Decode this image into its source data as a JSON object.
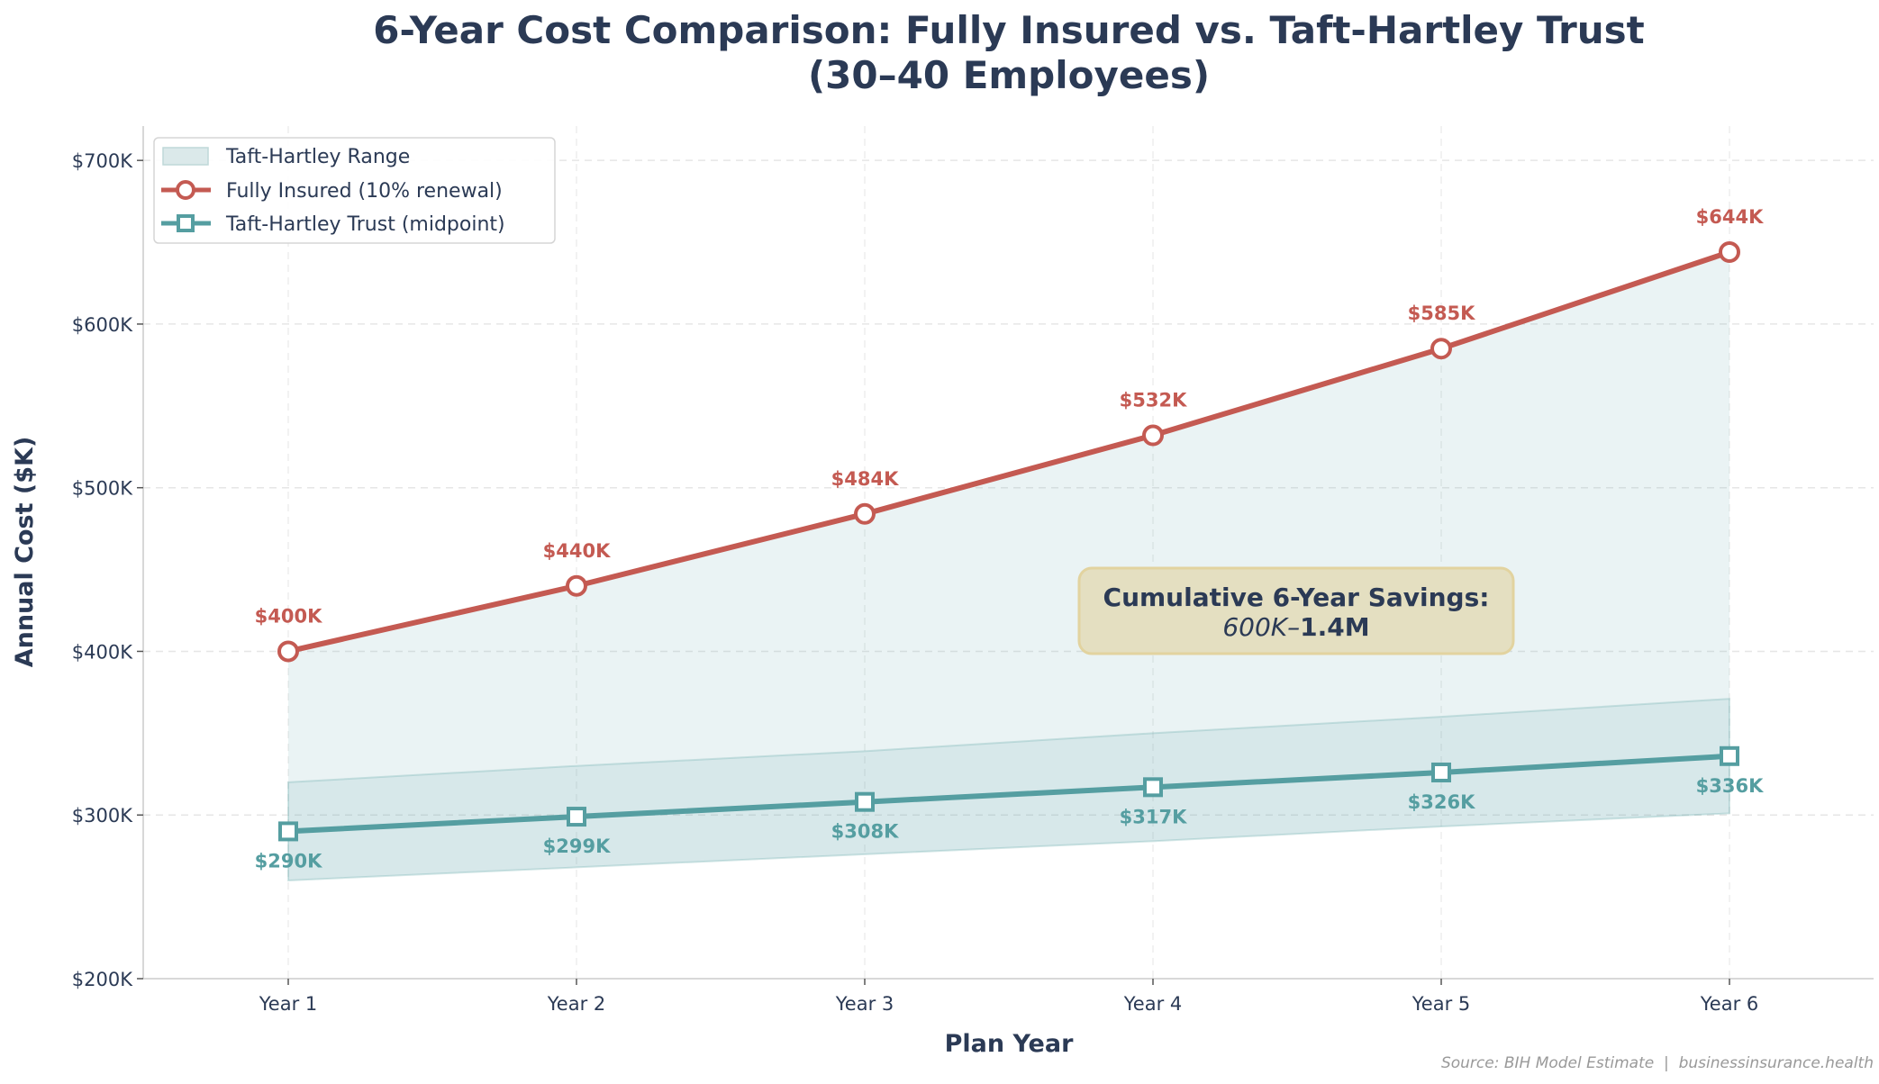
{
  "chart_data": {
    "type": "line",
    "title": "6-Year Cost Comparison: Fully Insured vs. Taft-Hartley Trust",
    "subtitle": "(30–40 Employees)",
    "xlabel": "Plan Year",
    "ylabel": "Annual Cost ($K)",
    "categories": [
      "Year 1",
      "Year 2",
      "Year 3",
      "Year 4",
      "Year 5",
      "Year 6"
    ],
    "ylim": [
      200,
      721
    ],
    "yticks": [
      200,
      300,
      400,
      500,
      600,
      700
    ],
    "ytick_labels": [
      "$200K",
      "$300K",
      "$400K",
      "$500K",
      "$600K",
      "$700K"
    ],
    "grid": true,
    "legend_position": "top-left",
    "series": [
      {
        "name": "Fully Insured (10% renewal)",
        "marker": "circle",
        "color": "#c45a52",
        "values": [
          400,
          440,
          484,
          532,
          585,
          644
        ],
        "labels": [
          "$400K",
          "$440K",
          "$484K",
          "$532K",
          "$585K",
          "$644K"
        ]
      },
      {
        "name": "Taft-Hartley Trust (midpoint)",
        "marker": "square",
        "color": "#559ea1",
        "values": [
          290,
          299,
          308,
          317,
          326,
          336
        ],
        "labels": [
          "$290K",
          "$299K",
          "$308K",
          "$317K",
          "$326K",
          "$336K"
        ]
      }
    ],
    "range": {
      "name": "Taft-Hartley Range",
      "color": "#559ea1",
      "lower": [
        260,
        268,
        276,
        284,
        293,
        301
      ],
      "upper": [
        320,
        330,
        339,
        350,
        360,
        371
      ]
    },
    "annotation": {
      "line1": "Cumulative 6-Year Savings:",
      "line2_italic": "600K–",
      "line2_bold": "1.4M"
    },
    "source": "Source: BIH Model Estimate  |  businessinsurance.health"
  }
}
